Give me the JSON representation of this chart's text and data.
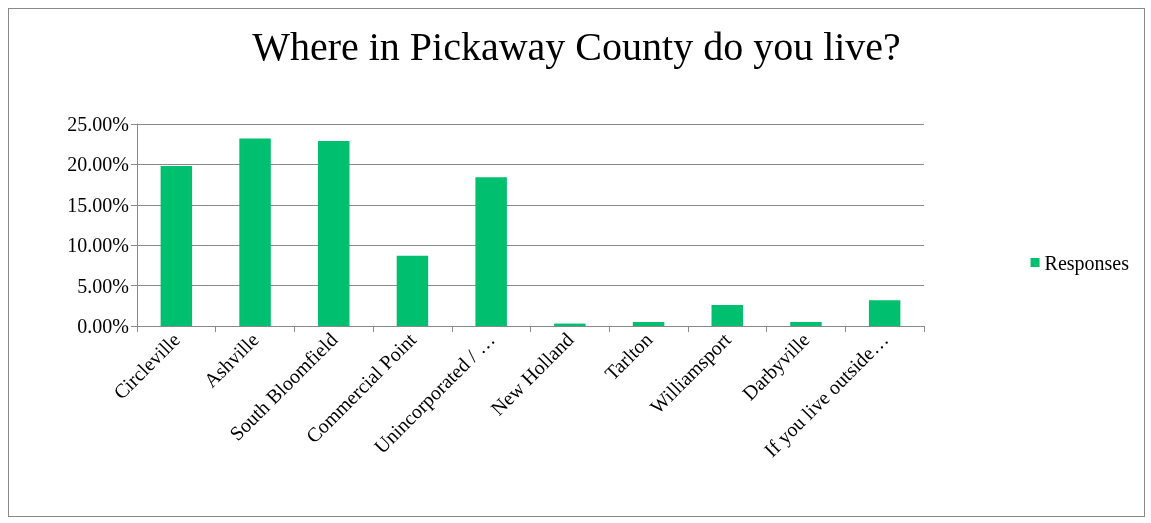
{
  "chart_data": {
    "type": "bar",
    "title": "Where in Pickaway County do you live?",
    "categories": [
      "Circleville",
      "Ashville",
      "South Bloomfield",
      "Commercial Point",
      "Unincorporated / …",
      "New Holland",
      "Tarlton",
      "Williamsport",
      "Darbyville",
      "If you live outside…"
    ],
    "series": [
      {
        "name": "Responses",
        "color": "#00bf6f",
        "values": [
          19.8,
          23.2,
          22.9,
          8.7,
          18.4,
          0.3,
          0.5,
          2.6,
          0.5,
          3.2
        ]
      }
    ],
    "ylim": [
      0,
      25
    ],
    "yticks": [
      {
        "value": 0,
        "label": "0.00%"
      },
      {
        "value": 5,
        "label": "5.00%"
      },
      {
        "value": 10,
        "label": "10.00%"
      },
      {
        "value": 15,
        "label": "15.00%"
      },
      {
        "value": 20,
        "label": "20.00%"
      },
      {
        "value": 25,
        "label": "25.00%"
      }
    ],
    "grid": "y",
    "legend": "right"
  }
}
